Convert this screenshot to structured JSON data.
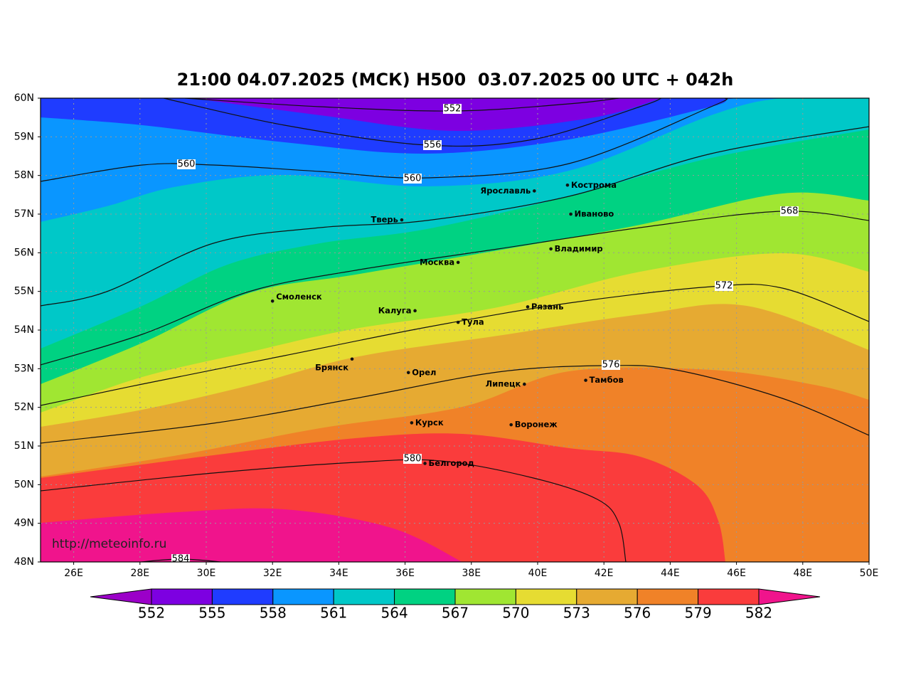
{
  "title": "21:00 04.07.2025 (МСК) H500  03.07.2025 00 UTC + 042h",
  "map": {
    "xlim": [
      25,
      50
    ],
    "ylim": [
      48,
      60
    ],
    "xticks": [
      {
        "value": 26,
        "label": "26E"
      },
      {
        "value": 28,
        "label": "28E"
      },
      {
        "value": 30,
        "label": "30E"
      },
      {
        "value": 32,
        "label": "32E"
      },
      {
        "value": 34,
        "label": "34E"
      },
      {
        "value": 36,
        "label": "36E"
      },
      {
        "value": 38,
        "label": "38E"
      },
      {
        "value": 40,
        "label": "40E"
      },
      {
        "value": 42,
        "label": "42E"
      },
      {
        "value": 44,
        "label": "44E"
      },
      {
        "value": 46,
        "label": "46E"
      },
      {
        "value": 48,
        "label": "48E"
      },
      {
        "value": 50,
        "label": "50E"
      }
    ],
    "yticks": [
      {
        "value": 48,
        "label": "48N"
      },
      {
        "value": 49,
        "label": "49N"
      },
      {
        "value": 50,
        "label": "50N"
      },
      {
        "value": 51,
        "label": "51N"
      },
      {
        "value": 52,
        "label": "52N"
      },
      {
        "value": 53,
        "label": "53N"
      },
      {
        "value": 54,
        "label": "54N"
      },
      {
        "value": 55,
        "label": "55N"
      },
      {
        "value": 56,
        "label": "56N"
      },
      {
        "value": 57,
        "label": "57N"
      },
      {
        "value": 58,
        "label": "58N"
      },
      {
        "value": 59,
        "label": "59N"
      },
      {
        "value": 60,
        "label": "60N"
      }
    ],
    "grid": true,
    "cities": [
      {
        "name": "Ярославль",
        "lon": 39.9,
        "lat": 57.6
      },
      {
        "name": "Кострома",
        "lon": 40.9,
        "lat": 57.75
      },
      {
        "name": "Иваново",
        "lon": 41.0,
        "lat": 57.0
      },
      {
        "name": "Тверь",
        "lon": 35.9,
        "lat": 56.85
      },
      {
        "name": "Москва",
        "lon": 37.6,
        "lat": 55.75
      },
      {
        "name": "Владимир",
        "lon": 40.4,
        "lat": 56.1
      },
      {
        "name": "Смоленск",
        "lon": 32.0,
        "lat": 54.75
      },
      {
        "name": "Калуга",
        "lon": 36.3,
        "lat": 54.5
      },
      {
        "name": "Рязань",
        "lon": 39.7,
        "lat": 54.6
      },
      {
        "name": "Тула",
        "lon": 37.6,
        "lat": 54.2
      },
      {
        "name": "Брянск",
        "lon": 34.4,
        "lat": 53.25
      },
      {
        "name": "Орел",
        "lon": 36.1,
        "lat": 52.9
      },
      {
        "name": "Липецк",
        "lon": 39.6,
        "lat": 52.6
      },
      {
        "name": "Тамбов",
        "lon": 41.45,
        "lat": 52.7
      },
      {
        "name": "Курск",
        "lon": 36.2,
        "lat": 51.6
      },
      {
        "name": "Воронеж",
        "lon": 39.2,
        "lat": 51.55
      },
      {
        "name": "Белгород",
        "lon": 36.6,
        "lat": 50.55
      }
    ],
    "contours": [
      552,
      556,
      560,
      560,
      568,
      572,
      576,
      580,
      584
    ],
    "watermark": "http://meteoinfo.ru"
  },
  "colorbar": {
    "levels": [
      552,
      555,
      558,
      561,
      564,
      567,
      570,
      573,
      576,
      579,
      582
    ],
    "colors": [
      "#9b00c8",
      "#7d00e1",
      "#1f3cff",
      "#0a96ff",
      "#00c8c8",
      "#00d282",
      "#a0e632",
      "#e6dc32",
      "#e6aa32",
      "#f08228",
      "#fa3c3c",
      "#f0148c"
    ]
  }
}
